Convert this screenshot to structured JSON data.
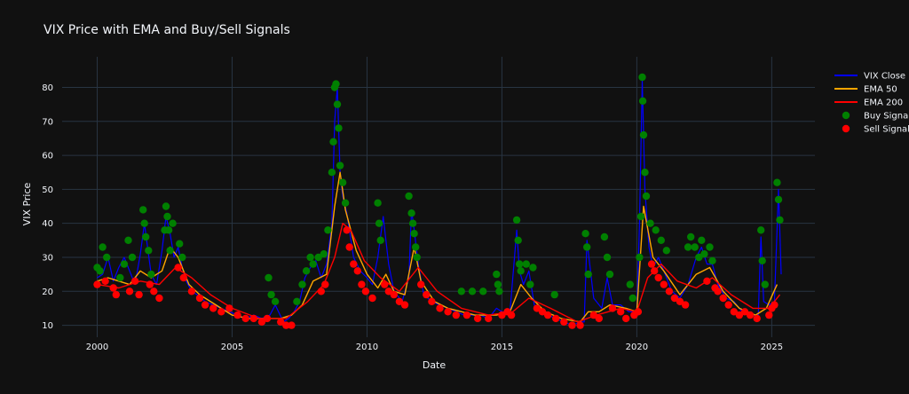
{
  "chart_data": {
    "type": "line",
    "title": "VIX Price with EMA and Buy/Sell Signals",
    "xlabel": "Date",
    "ylabel": "VIX Price",
    "xlim": [
      1998.7,
      2026.6
    ],
    "ylim": [
      6.5,
      89
    ],
    "x_ticks": [
      2000,
      2005,
      2010,
      2015,
      2020,
      2025
    ],
    "y_ticks": [
      10,
      20,
      30,
      40,
      50,
      60,
      70,
      80
    ],
    "grid": true,
    "legend_position": "top-right",
    "colors": {
      "background": "#111111",
      "grid": "#283442",
      "vix": "#0000ff",
      "ema50": "#ffa500",
      "ema200": "#ff0000",
      "buy": "#008000",
      "sell": "#ff0000"
    },
    "series": [
      {
        "name": "VIX Close",
        "x": [
          2000.0,
          2000.2,
          2000.4,
          2000.6,
          2000.8,
          2001.0,
          2001.2,
          2001.4,
          2001.6,
          2001.75,
          2001.85,
          2002.0,
          2002.2,
          2002.4,
          2002.55,
          2002.7,
          2002.85,
          2003.0,
          2003.15,
          2003.3,
          2003.5,
          2003.7,
          2004.0,
          2004.3,
          2004.6,
          2004.9,
          2005.2,
          2005.5,
          2005.8,
          2006.1,
          2006.4,
          2006.6,
          2006.9,
          2007.1,
          2007.3,
          2007.5,
          2007.7,
          2007.9,
          2008.1,
          2008.3,
          2008.5,
          2008.7,
          2008.8,
          2008.9,
          2009.0,
          2009.1,
          2009.25,
          2009.5,
          2009.75,
          2010.0,
          2010.2,
          2010.4,
          2010.6,
          2010.8,
          2011.0,
          2011.3,
          2011.55,
          2011.65,
          2011.75,
          2011.9,
          2012.1,
          2012.4,
          2012.7,
          2013.0,
          2013.3,
          2013.6,
          2013.9,
          2014.2,
          2014.5,
          2014.8,
          2015.0,
          2015.3,
          2015.55,
          2015.65,
          2015.8,
          2016.0,
          2016.2,
          2016.45,
          2016.7,
          2017.0,
          2017.3,
          2017.6,
          2017.9,
          2018.05,
          2018.15,
          2018.4,
          2018.7,
          2018.9,
          2019.1,
          2019.4,
          2019.7,
          2020.0,
          2020.1,
          2020.2,
          2020.3,
          2020.45,
          2020.6,
          2020.8,
          2021.0,
          2021.3,
          2021.6,
          2021.9,
          2022.2,
          2022.4,
          2022.6,
          2022.8,
          2023.0,
          2023.3,
          2023.6,
          2023.9,
          2024.2,
          2024.5,
          2024.6,
          2024.7,
          2024.9,
          2025.1,
          2025.25,
          2025.35
        ],
        "values": [
          24,
          25,
          30,
          23,
          27,
          30,
          26,
          22,
          31,
          40,
          34,
          25,
          22,
          32,
          42,
          37,
          30,
          33,
          27,
          23,
          20,
          19,
          17,
          16,
          15,
          14,
          13,
          12,
          13,
          12,
          13,
          16,
          11,
          12,
          14,
          17,
          24,
          27,
          29,
          24,
          28,
          40,
          70,
          80,
          55,
          48,
          43,
          30,
          26,
          24,
          22,
          30,
          42,
          28,
          20,
          17,
          24,
          44,
          38,
          28,
          19,
          17,
          16,
          15,
          14,
          13,
          13,
          13,
          12,
          15,
          14,
          14,
          38,
          26,
          22,
          26,
          16,
          14,
          13,
          12,
          11,
          10,
          11,
          11,
          35,
          18,
          15,
          24,
          16,
          16,
          14,
          14,
          40,
          82,
          50,
          33,
          27,
          30,
          26,
          20,
          18,
          22,
          30,
          33,
          28,
          28,
          22,
          18,
          17,
          14,
          13,
          13,
          36,
          17,
          16,
          17,
          50,
          25
        ]
      },
      {
        "name": "EMA 50",
        "x": [
          2000.0,
          2000.4,
          2000.8,
          2001.2,
          2001.6,
          2002.0,
          2002.4,
          2002.7,
          2003.0,
          2003.4,
          2003.8,
          2004.4,
          2005.0,
          2005.6,
          2006.2,
          2006.8,
          2007.2,
          2007.6,
          2008.0,
          2008.5,
          2008.8,
          2009.0,
          2009.2,
          2009.6,
          2010.0,
          2010.4,
          2010.7,
          2011.0,
          2011.4,
          2011.75,
          2012.0,
          2012.5,
          2013.0,
          2014.0,
          2014.8,
          2015.3,
          2015.7,
          2016.1,
          2016.6,
          2017.2,
          2017.9,
          2018.2,
          2018.6,
          2019.0,
          2019.6,
          2020.0,
          2020.25,
          2020.6,
          2021.0,
          2021.6,
          2022.2,
          2022.7,
          2023.2,
          2023.8,
          2024.4,
          2024.8,
          2025.2
        ],
        "values": [
          23,
          24,
          23,
          22,
          26,
          24,
          26,
          33,
          30,
          22,
          19,
          16,
          13,
          12,
          12,
          12,
          13,
          16,
          23,
          25,
          45,
          55,
          44,
          32,
          25,
          21,
          25,
          20,
          19,
          33,
          23,
          17,
          15,
          13,
          13,
          14,
          22,
          18,
          14,
          12,
          11,
          14,
          14,
          16,
          15,
          14,
          45,
          30,
          26,
          19,
          25,
          27,
          20,
          15,
          13,
          15,
          22
        ]
      },
      {
        "name": "EMA 200",
        "x": [
          2000.0,
          2000.8,
          2001.6,
          2002.3,
          2002.9,
          2003.5,
          2004.2,
          2005.0,
          2006.0,
          2007.0,
          2007.8,
          2008.4,
          2008.8,
          2009.1,
          2009.4,
          2009.9,
          2010.5,
          2011.2,
          2011.9,
          2012.6,
          2013.5,
          2014.5,
          2015.4,
          2016.0,
          2016.8,
          2017.8,
          2018.5,
          2019.4,
          2020.0,
          2020.4,
          2020.9,
          2021.5,
          2022.2,
          2022.8,
          2023.5,
          2024.3,
          2024.9,
          2025.3
        ],
        "values": [
          22,
          21,
          23,
          22,
          27,
          24,
          19,
          15,
          12,
          12,
          17,
          22,
          30,
          40,
          38,
          29,
          24,
          20,
          27,
          20,
          15,
          13,
          14,
          18,
          15,
          11,
          13,
          15,
          14,
          24,
          28,
          23,
          21,
          24,
          19,
          15,
          15,
          19
        ]
      },
      {
        "name": "Buy Signal",
        "x": [
          2000.0,
          2000.1,
          2000.2,
          2000.35,
          2000.85,
          2001.0,
          2001.15,
          2001.3,
          2001.7,
          2001.75,
          2001.8,
          2001.9,
          2002.0,
          2002.5,
          2002.55,
          2002.6,
          2002.65,
          2002.7,
          2002.8,
          2003.05,
          2003.15,
          2006.35,
          2006.45,
          2006.6,
          2007.4,
          2007.6,
          2007.75,
          2007.9,
          2008.0,
          2008.2,
          2008.4,
          2008.55,
          2008.7,
          2008.75,
          2008.8,
          2008.85,
          2008.9,
          2008.95,
          2009.0,
          2009.1,
          2009.2,
          2010.4,
          2010.45,
          2010.5,
          2011.55,
          2011.65,
          2011.7,
          2011.75,
          2011.8,
          2011.85,
          2013.5,
          2013.9,
          2014.3,
          2014.8,
          2014.85,
          2014.9,
          2015.55,
          2015.6,
          2015.65,
          2015.7,
          2015.9,
          2016.05,
          2016.15,
          2016.95,
          2018.1,
          2018.15,
          2018.2,
          2018.8,
          2018.9,
          2019.0,
          2019.75,
          2019.85,
          2020.1,
          2020.15,
          2020.2,
          2020.22,
          2020.25,
          2020.3,
          2020.35,
          2020.5,
          2020.7,
          2020.9,
          2021.1,
          2021.9,
          2022.0,
          2022.15,
          2022.3,
          2022.4,
          2022.5,
          2022.7,
          2022.8,
          2024.6,
          2024.65,
          2024.75,
          2025.2,
          2025.25,
          2025.3
        ],
        "values": [
          27,
          26,
          33,
          30,
          24,
          28,
          35,
          30,
          44,
          40,
          36,
          32,
          25,
          38,
          45,
          42,
          38,
          32,
          40,
          34,
          30,
          24,
          19,
          17,
          17,
          22,
          26,
          30,
          28,
          30,
          31,
          38,
          55,
          64,
          80,
          81,
          75,
          68,
          57,
          52,
          46,
          46,
          40,
          35,
          48,
          43,
          40,
          37,
          33,
          30,
          20,
          20,
          20,
          25,
          22,
          20,
          41,
          35,
          28,
          26,
          28,
          22,
          27,
          19,
          37,
          33,
          25,
          36,
          30,
          25,
          22,
          18,
          30,
          42,
          83,
          76,
          66,
          55,
          48,
          40,
          38,
          35,
          32,
          33,
          36,
          33,
          30,
          35,
          31,
          33,
          29,
          38,
          29,
          22,
          52,
          47,
          41
        ]
      },
      {
        "name": "Sell Signal",
        "x": [
          2000.0,
          2000.3,
          2000.6,
          2000.7,
          2001.2,
          2001.4,
          2001.55,
          2001.95,
          2002.1,
          2002.3,
          2003.0,
          2003.2,
          2003.5,
          2003.8,
          2004.0,
          2004.3,
          2004.6,
          2004.9,
          2005.2,
          2005.5,
          2005.8,
          2006.1,
          2006.3,
          2006.8,
          2007.0,
          2007.2,
          2008.3,
          2008.45,
          2009.25,
          2009.35,
          2009.5,
          2009.65,
          2009.8,
          2009.95,
          2010.2,
          2010.65,
          2010.8,
          2011.0,
          2011.2,
          2011.4,
          2012.0,
          2012.2,
          2012.4,
          2012.7,
          2013.0,
          2013.3,
          2013.7,
          2014.1,
          2014.5,
          2015.0,
          2015.2,
          2015.35,
          2016.3,
          2016.5,
          2016.7,
          2017.0,
          2017.3,
          2017.6,
          2017.9,
          2018.4,
          2018.6,
          2019.1,
          2019.4,
          2019.6,
          2019.9,
          2020.05,
          2020.55,
          2020.65,
          2020.8,
          2021.0,
          2021.2,
          2021.4,
          2021.6,
          2021.8,
          2022.6,
          2022.9,
          2023.0,
          2023.2,
          2023.4,
          2023.6,
          2023.8,
          2024.0,
          2024.2,
          2024.45,
          2024.9,
          2025.0,
          2025.1
        ],
        "values": [
          22,
          23,
          21,
          19,
          20,
          23,
          19,
          22,
          20,
          18,
          27,
          24,
          20,
          18,
          16,
          15,
          14,
          15,
          13,
          12,
          12,
          11,
          12,
          11,
          10,
          10,
          20,
          22,
          38,
          33,
          28,
          26,
          22,
          20,
          18,
          22,
          20,
          19,
          17,
          16,
          22,
          19,
          17,
          15,
          14,
          13,
          13,
          12,
          12,
          13,
          14,
          13,
          15,
          14,
          13,
          12,
          11,
          10,
          10,
          13,
          12,
          15,
          14,
          12,
          13,
          14,
          28,
          26,
          24,
          22,
          20,
          18,
          17,
          16,
          23,
          21,
          20,
          18,
          16,
          14,
          13,
          14,
          13,
          12,
          13,
          15,
          16
        ]
      }
    ]
  }
}
